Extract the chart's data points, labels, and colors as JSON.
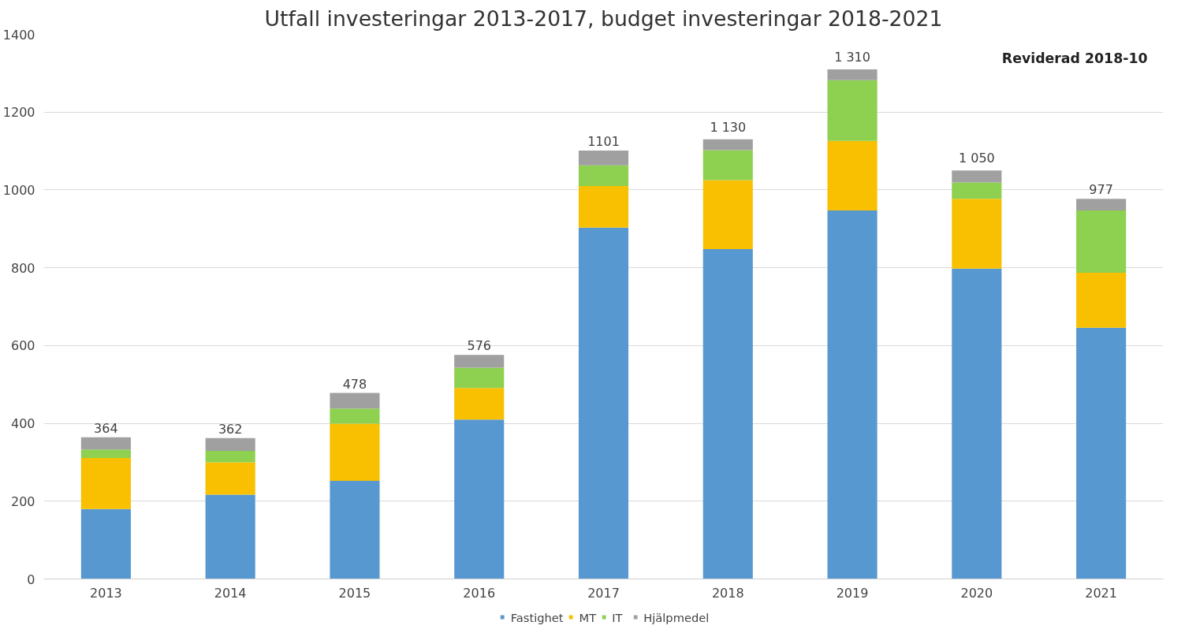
{
  "chart_data": {
    "type": "bar",
    "title": "Utfall investeringar 2013-2017, budget investeringar 2018-2021",
    "stacked": true,
    "categories": [
      "2013",
      "2014",
      "2015",
      "2016",
      "2017",
      "2018",
      "2019",
      "2020",
      "2021"
    ],
    "series": [
      {
        "name": "Fastighet",
        "color": "#5898d0",
        "values": [
          180,
          217,
          252,
          410,
          903,
          848,
          947,
          798,
          646
        ]
      },
      {
        "name": "MT",
        "color": "#f8c000",
        "values": [
          131,
          83,
          147,
          81,
          107,
          177,
          179,
          179,
          141
        ]
      },
      {
        "name": "IT",
        "color": "#8ed050",
        "values": [
          22,
          29,
          39,
          52,
          53,
          77,
          156,
          42,
          160
        ]
      },
      {
        "name": "Hjälpmedel",
        "color": "#a0a0a0",
        "values": [
          31,
          33,
          40,
          33,
          38,
          28,
          28,
          31,
          30
        ]
      }
    ],
    "totals": [
      "364",
      "362",
      "478",
      "576",
      "1101",
      "1 130",
      "1 310",
      "1 050",
      "977"
    ],
    "annotations": [
      "Reviderad 2018-10"
    ],
    "ylim": [
      0,
      1400
    ],
    "yticks": [
      0,
      200,
      400,
      600,
      800,
      1000,
      1200,
      1400
    ],
    "grid": "y",
    "legend": "bottom"
  }
}
